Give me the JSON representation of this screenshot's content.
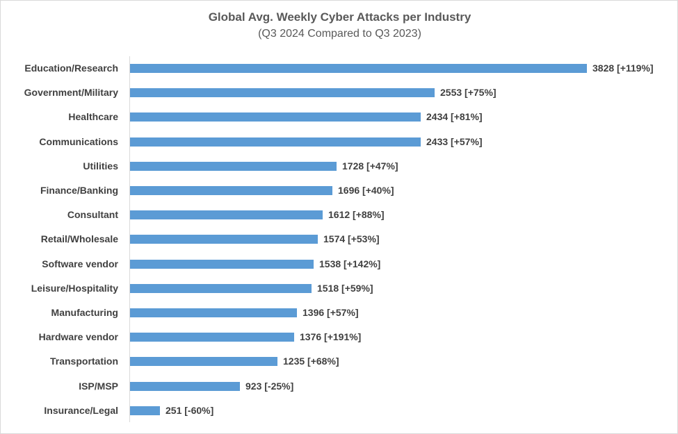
{
  "chart_data": {
    "type": "bar",
    "orientation": "horizontal",
    "title": "Global Avg. Weekly Cyber Attacks per Industry",
    "subtitle": "(Q3 2024 Compared to Q3 2023)",
    "xlabel": "",
    "ylabel": "",
    "grid": false,
    "legend": null,
    "bar_color": "#5b9bd5",
    "categories": [
      "Education/Research",
      "Government/Military",
      "Healthcare",
      "Communications",
      "Utilities",
      "Finance/Banking",
      "Consultant",
      "Retail/Wholesale",
      "Software vendor",
      "Leisure/Hospitality",
      "Manufacturing",
      "Hardware vendor",
      "Transportation",
      "ISP/MSP",
      "Insurance/Legal"
    ],
    "values": [
      3828,
      2553,
      2434,
      2433,
      1728,
      1696,
      1612,
      1574,
      1538,
      1518,
      1396,
      1376,
      1235,
      923,
      251
    ],
    "yoy_change_pct": [
      119,
      75,
      81,
      57,
      47,
      40,
      88,
      53,
      142,
      59,
      57,
      191,
      68,
      -25,
      -60
    ],
    "data_labels": [
      "3828 [+119%]",
      "2553 [+75%]",
      "2434 [+81%]",
      "2433 [+57%]",
      "1728 [+47%]",
      "1696 [+40%]",
      "1612 [+88%]",
      "1574 [+53%]",
      "1538 [+142%]",
      "1518 [+59%]",
      "1396 [+57%]",
      "1376 [+191%]",
      "1235 [+68%]",
      "923 [-25%]",
      "251 [-60%]"
    ]
  }
}
